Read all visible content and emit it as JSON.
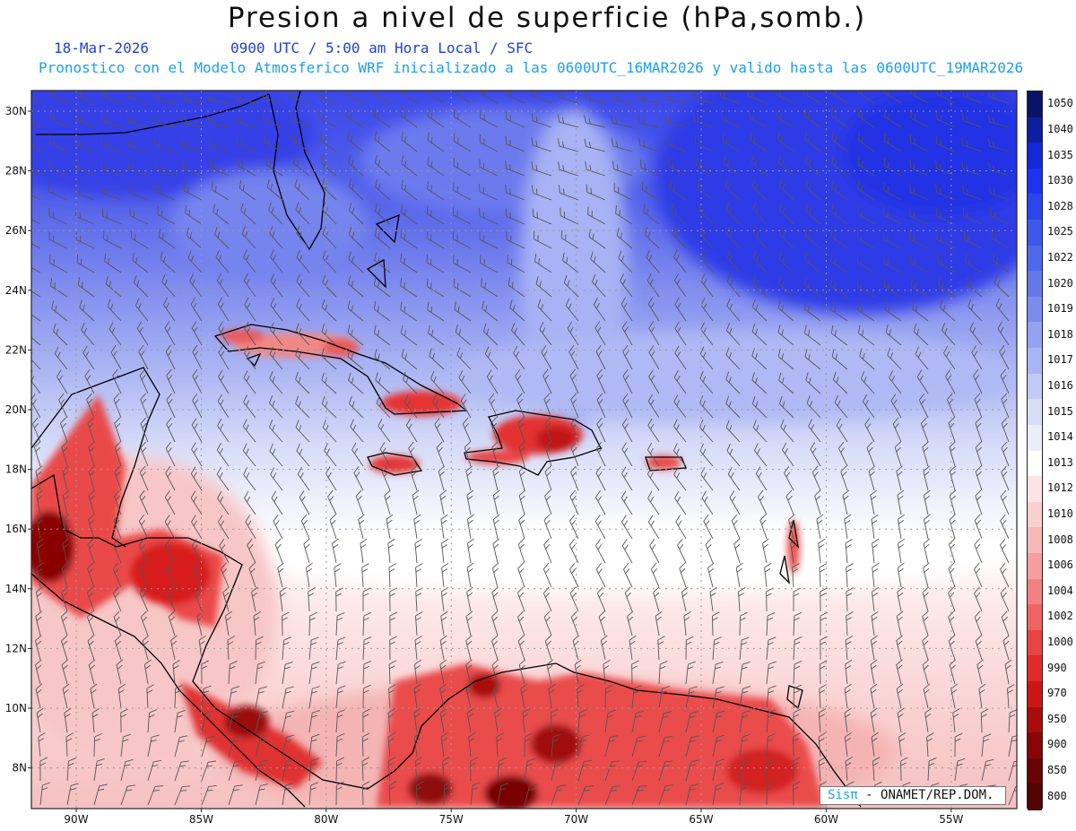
{
  "header": {
    "title": "Presion a nivel de superficie (hPa,somb.)",
    "date": "18-Mar-2026",
    "time_info": "0900 UTC / 5:00 am Hora Local / SFC",
    "model_info": "Pronostico con el Modelo Atmosferico WRF inicializado a las 0600UTC_16MAR2026 y valido hasta las  0600UTC_19MAR2026"
  },
  "map": {
    "lat_labels": [
      "30N",
      "28N",
      "26N",
      "24N",
      "22N",
      "20N",
      "18N",
      "16N",
      "14N",
      "12N",
      "10N",
      "8N"
    ],
    "lon_labels": [
      "90W",
      "85W",
      "80W",
      "75W",
      "70W",
      "65W",
      "60W",
      "55W"
    ],
    "grid": true
  },
  "colorbar": {
    "levels": [
      "1050",
      "1040",
      "1035",
      "1030",
      "1028",
      "1025",
      "1022",
      "1020",
      "1019",
      "1018",
      "1017",
      "1016",
      "1015",
      "1014",
      "1013",
      "1012",
      "1010",
      "1008",
      "1006",
      "1004",
      "1002",
      "1000",
      "990",
      "970",
      "950",
      "900",
      "850",
      "800"
    ],
    "colors": [
      "#0a1466",
      "#0e1ea0",
      "#1528d8",
      "#1c34f2",
      "#2c46ec",
      "#3e58ea",
      "#5068ea",
      "#6478ea",
      "#7c8cee",
      "#94a2f0",
      "#aab6f4",
      "#c2cbf6",
      "#d8def8",
      "#ebeefa",
      "#ffffff",
      "#fde4e4",
      "#fbcfcf",
      "#f8b8b8",
      "#f59e9e",
      "#f28282",
      "#ee6464",
      "#e84444",
      "#e02a2a",
      "#cc1616",
      "#aa0c0c",
      "#880606",
      "#680404",
      "#520303"
    ]
  },
  "credit": {
    "brand": "Sisπ",
    "org": "- ONAMET/REP.DOM."
  }
}
